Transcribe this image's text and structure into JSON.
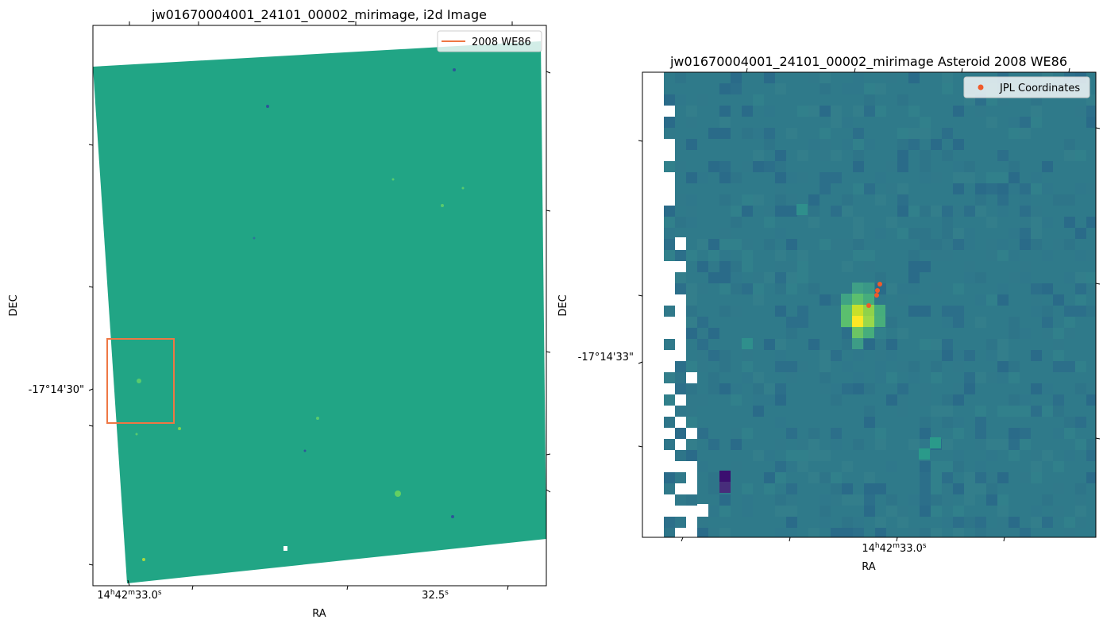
{
  "chart_data": [
    {
      "type": "heatmap",
      "title": "jw01670004001_24101_00002_mirimage,  i2d Image",
      "xlabel": "RA",
      "ylabel": "DEC",
      "x_ticks": [
        {
          "h": "14",
          "m": "42",
          "s": "33.0",
          "label": "14h42m33.0s"
        },
        {
          "s": "32.5",
          "label": "32.5s"
        }
      ],
      "y_ticks": [
        "-17°14'30\""
      ],
      "legend": {
        "position": "top-right",
        "entries": [
          {
            "label": "2008 WE86",
            "color": "#ee7744",
            "kind": "line"
          }
        ]
      },
      "colormap": "viridis",
      "background_color": "#21a585"
    },
    {
      "type": "heatmap",
      "title": "jw01670004001_24101_00002_mirimage Asteroid 2008 WE86",
      "xlabel": "RA",
      "ylabel": "DEC",
      "x_ticks": [
        {
          "h": "14",
          "m": "42",
          "s": "33.0",
          "label": "14h42m33.0s"
        }
      ],
      "y_ticks": [
        "-17°14'33\""
      ],
      "legend": {
        "position": "top-right",
        "entries": [
          {
            "label": "JPL Coordinates",
            "color": "#f05a2a",
            "kind": "scatter"
          }
        ]
      },
      "colormap": "viridis",
      "background_color": "#2f7a8a",
      "jpl_points_count": 4
    }
  ]
}
